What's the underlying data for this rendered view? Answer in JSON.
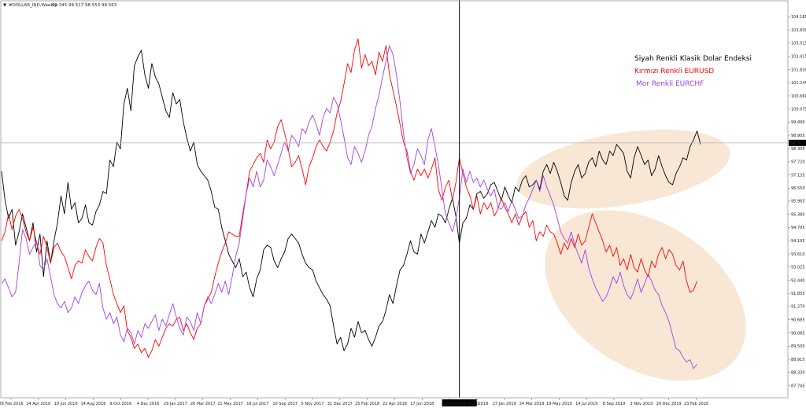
{
  "header": {
    "symbol_label": "#DOLLAR_IND,Weekly",
    "ohlc_values": "99.345 99.517 98.553 98.563"
  },
  "price_tag": "98.563",
  "crosshair_label": "2018.09.16 00:00",
  "annotations": [
    {
      "text": "Siyah Renkli Klasik Dolar Endeksi",
      "color": "#000000"
    },
    {
      "text": "Kırmızı Renkli EURUSD",
      "color": "#ff0000"
    },
    {
      "text": "Mor Renkli EURCHF",
      "color": "#a040e0"
    }
  ],
  "chart_data": {
    "type": "line",
    "ylim": [
      87.2,
      104.9
    ],
    "y_ticks": [
      "104.185",
      "103.600",
      "103.015",
      "102.415",
      "101.830",
      "101.245",
      "100.660",
      "100.075",
      "99.490",
      "98.905",
      "98.305",
      "97.720",
      "97.135",
      "96.550",
      "95.965",
      "95.380",
      "94.795",
      "94.195",
      "93.610",
      "93.025",
      "92.440",
      "91.855",
      "91.270",
      "90.685",
      "90.085",
      "89.500",
      "88.915",
      "88.330",
      "87.745"
    ],
    "x_ticks": [
      "28 Feb 2016",
      "24 Apr 2016",
      "19 Jun 2016",
      "14 Aug 2016",
      "9 Oct 2016",
      "4 Dec 2016",
      "29 Jan 2017",
      "26 Mar 2017",
      "21 May 2017",
      "16 Jul 2017",
      "10 Sep 2017",
      "5 Nov 2017",
      "31 Dec 2017",
      "25 Feb 2018",
      "22 Apr 2018",
      "17 Jun 2018",
      "",
      "2 Dec 2018",
      "27 Jan 2019",
      "24 Mar 2019",
      "19 May 2019",
      "14 Jul 2019",
      "8 Sep 2019",
      "3 Nov 2019",
      "29 Dec 2019",
      "23 Feb 2020"
    ],
    "current_value": 98.563,
    "crosshair_week_index": 131,
    "series": [
      {
        "name": "Siyah Renkli Klasik Dolar Endeksi",
        "color": "#000000",
        "values": [
          97.3,
          96.0,
          95.2,
          95.6,
          94.0,
          94.6,
          95.4,
          94.8,
          94.2,
          95.0,
          93.7,
          94.5,
          92.6,
          94.2,
          93.2,
          94.2,
          95.0,
          96.2,
          95.4,
          96.8,
          95.6,
          95.9,
          95.0,
          95.2,
          95.8,
          95.0,
          94.9,
          95.5,
          95.8,
          96.4,
          96.3,
          97.8,
          97.5,
          98.6,
          98.3,
          100.3,
          101.0,
          100.0,
          102.0,
          102.4,
          102.7,
          101.6,
          101.0,
          102.1,
          101.5,
          101.2,
          100.6,
          100.0,
          99.7,
          100.8,
          100.3,
          100.5,
          99.5,
          98.8,
          98.2,
          98.6,
          97.6,
          97.3,
          97.1,
          96.9,
          96.4,
          95.7,
          95.6,
          94.8,
          94.2,
          93.6,
          93.3,
          93.0,
          93.4,
          92.6,
          92.8,
          92.1,
          91.7,
          92.5,
          92.9,
          93.8,
          94.0,
          93.9,
          93.3,
          93.0,
          93.4,
          93.7,
          94.3,
          94.5,
          94.3,
          94.1,
          93.6,
          93.2,
          93.0,
          92.9,
          92.4,
          92.1,
          91.8,
          91.6,
          91.3,
          90.4,
          89.6,
          89.9,
          89.3,
          89.6,
          90.3,
          89.9,
          90.6,
          90.1,
          90.2,
          89.8,
          89.5,
          89.9,
          90.4,
          90.6,
          91.1,
          91.8,
          91.4,
          92.2,
          92.9,
          93.1,
          93.6,
          94.2,
          93.7,
          93.6,
          94.5,
          94.1,
          94.6,
          95.1,
          94.8,
          95.4,
          95.3,
          95.0,
          95.6,
          96.1,
          95.3,
          94.1,
          95.0,
          95.2,
          95.8,
          95.6,
          96.3,
          96.4,
          96.1,
          96.3,
          96.7,
          96.8,
          96.4,
          96.0,
          96.6,
          96.2,
          95.9,
          96.6,
          96.4,
          96.9,
          97.1,
          96.6,
          96.7,
          96.9,
          96.5,
          97.3,
          97.6,
          97.2,
          97.7,
          97.3,
          96.8,
          96.2,
          96.0,
          96.8,
          97.3,
          97.6,
          97.0,
          97.2,
          97.7,
          97.9,
          97.5,
          98.2,
          97.8,
          97.6,
          98.2,
          98.0,
          98.5,
          98.3,
          98.1,
          97.3,
          97.0,
          97.9,
          98.4,
          98.0,
          97.6,
          97.8,
          97.1,
          97.4,
          98.0,
          97.5,
          97.1,
          96.8,
          96.7,
          97.2,
          97.5,
          97.9,
          97.8,
          98.4,
          98.7,
          99.1,
          98.5
        ]
      },
      {
        "name": "Kırmızı Renkli EURUSD",
        "color": "#ff0000",
        "values": [
          94.2,
          94.6,
          95.4,
          94.7,
          95.3,
          95.6,
          95.2,
          94.6,
          94.2,
          94.8,
          94.1,
          93.6,
          94.4,
          93.9,
          93.2,
          93.9,
          94.1,
          93.7,
          93.5,
          93.0,
          92.5,
          93.1,
          93.3,
          93.2,
          93.8,
          93.5,
          93.3,
          93.9,
          94.3,
          94.1,
          93.1,
          92.5,
          91.8,
          91.4,
          91.0,
          91.3,
          90.2,
          89.9,
          89.4,
          89.6,
          89.2,
          89.4,
          89.0,
          89.3,
          89.8,
          89.5,
          89.9,
          90.3,
          90.5,
          90.4,
          90.7,
          90.8,
          90.2,
          90.5,
          90.1,
          89.8,
          90.3,
          90.5,
          91.3,
          91.6,
          91.9,
          92.6,
          93.2,
          93.7,
          94.1,
          94.6,
          94.5,
          94.4,
          94.4,
          95.4,
          96.3,
          97.3,
          97.6,
          97.9,
          98.1,
          97.7,
          98.7,
          98.3,
          98.6,
          99.3,
          99.6,
          99.0,
          98.3,
          97.5,
          97.7,
          98.0,
          97.4,
          96.7,
          97.5,
          97.9,
          98.4,
          98.7,
          98.4,
          98.2,
          98.6,
          99.1,
          99.9,
          100.4,
          101.2,
          102.1,
          101.7,
          102.7,
          103.2,
          101.9,
          102.5,
          102.0,
          102.2,
          101.6,
          102.6,
          102.2,
          102.9,
          101.6,
          100.9,
          100.2,
          99.4,
          98.6,
          98.2,
          97.3,
          96.9,
          97.4,
          97.1,
          97.4,
          97.0,
          97.4,
          97.9,
          96.5,
          96.0,
          96.6,
          96.9,
          96.0,
          96.8,
          97.9,
          97.2,
          96.6,
          96.2,
          95.6,
          96.2,
          95.4,
          95.9,
          95.6,
          95.9,
          95.3,
          95.6,
          96.1,
          95.7,
          95.4,
          95.0,
          95.4,
          94.9,
          95.3,
          95.5,
          94.8,
          95.1,
          94.2,
          94.6,
          94.4,
          94.9,
          94.6,
          94.5,
          94.1,
          93.6,
          94.1,
          93.8,
          94.3,
          93.9,
          94.5,
          94.0,
          94.2,
          94.8,
          95.4,
          95.0,
          94.6,
          94.2,
          93.7,
          94.0,
          93.5,
          93.9,
          93.1,
          93.4,
          92.9,
          93.6,
          93.0,
          92.8,
          93.4,
          92.9,
          92.6,
          93.3,
          93.0,
          93.6,
          93.9,
          93.4,
          93.8,
          93.6,
          93.1,
          92.9,
          93.3,
          92.4,
          91.9,
          92.0,
          92.4
        ]
      },
      {
        "name": "Mor Renkli EURCHF",
        "color": "#a040e0",
        "values": [
          92.3,
          92.5,
          92.1,
          91.7,
          91.9,
          93.2,
          94.7,
          94.3,
          93.6,
          93.9,
          94.2,
          93.1,
          92.9,
          93.4,
          92.6,
          91.8,
          91.4,
          91.2,
          91.5,
          91.0,
          91.2,
          91.7,
          91.4,
          91.9,
          92.2,
          92.4,
          92.0,
          91.8,
          92.3,
          91.2,
          90.7,
          91.0,
          90.5,
          90.8,
          90.0,
          89.7,
          90.3,
          90.1,
          89.6,
          90.2,
          89.9,
          90.5,
          90.3,
          90.6,
          90.9,
          90.2,
          90.7,
          90.4,
          90.9,
          91.4,
          90.8,
          90.3,
          90.0,
          90.8,
          90.6,
          90.2,
          91.0,
          90.5,
          91.3,
          91.7,
          91.4,
          91.8,
          92.3,
          91.9,
          92.4,
          91.8,
          92.6,
          93.5,
          94.1,
          95.2,
          96.3,
          97.0,
          96.6,
          97.3,
          96.6,
          96.9,
          97.8,
          97.5,
          97.1,
          97.6,
          98.1,
          98.6,
          98.2,
          98.9,
          98.7,
          98.4,
          99.2,
          99.0,
          99.5,
          99.8,
          99.4,
          98.9,
          99.7,
          100.1,
          99.9,
          100.6,
          100.3,
          99.6,
          98.8,
          97.9,
          97.6,
          98.4,
          98.1,
          97.7,
          98.2,
          98.9,
          99.3,
          100.1,
          100.7,
          101.5,
          102.2,
          102.9,
          102.5,
          101.6,
          100.4,
          99.0,
          97.9,
          97.2,
          97.6,
          98.3,
          98.0,
          97.6,
          98.7,
          99.2,
          98.4,
          97.6,
          96.5,
          95.4,
          95.0,
          94.6,
          95.2,
          96.1,
          97.4,
          96.8,
          97.3,
          96.8,
          97.0,
          96.6,
          96.9,
          96.5,
          96.2,
          96.5,
          95.7,
          95.6,
          95.9,
          95.5,
          96.0,
          95.6,
          95.2,
          95.3,
          95.8,
          96.1,
          96.5,
          96.9,
          96.4,
          97.1,
          96.6,
          96.2,
          95.8,
          95.2,
          94.6,
          94.3,
          94.1,
          94.6,
          94.0,
          93.6,
          93.2,
          93.8,
          93.0,
          92.5,
          92.1,
          91.8,
          91.5,
          91.7,
          92.1,
          92.6,
          92.3,
          92.8,
          92.2,
          91.8,
          91.6,
          92.0,
          92.5,
          91.9,
          92.3,
          92.7,
          92.4,
          92.0,
          91.8,
          91.3,
          91.0,
          90.6,
          90.0,
          89.4,
          89.3,
          89.0,
          88.8,
          88.9,
          88.5,
          88.7
        ]
      }
    ]
  }
}
